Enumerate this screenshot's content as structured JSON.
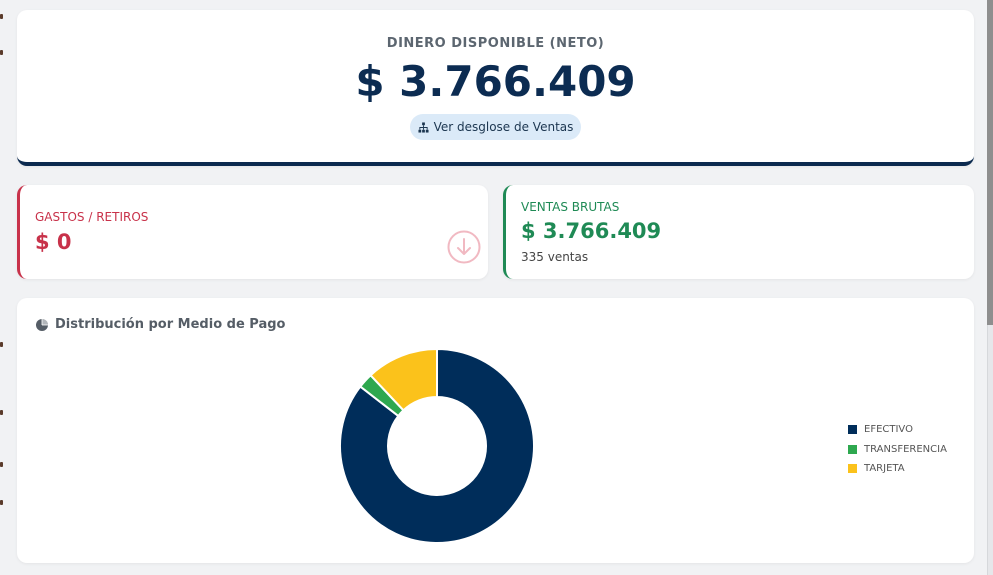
{
  "hero": {
    "title": "DINERO DISPONIBLE (NETO)",
    "amount": "$ 3.766.409",
    "button_label": "Ver desglose de Ventas"
  },
  "gastos": {
    "label": "GASTOS / RETIROS",
    "amount": "$ 0"
  },
  "ventas": {
    "label": "VENTAS BRUTAS",
    "amount": "$ 3.766.409",
    "sub": "335 ventas"
  },
  "chart": {
    "title": "Distribución por Medio de Pago"
  },
  "colors": {
    "navy": "#002d5a",
    "green": "#2ea84f",
    "yellow": "#fbc21b",
    "red": "#c8324a",
    "ventas_green": "#1f8a55"
  },
  "chart_data": {
    "type": "pie",
    "donut": true,
    "title": "Distribución por Medio de Pago",
    "categories": [
      "EFECTIVO",
      "TRANSFERENCIA",
      "TARJETA"
    ],
    "values": [
      85.5,
      2.5,
      12.0
    ],
    "colors": [
      "#002d5a",
      "#2ea84f",
      "#fbc21b"
    ],
    "legend_position": "right"
  }
}
